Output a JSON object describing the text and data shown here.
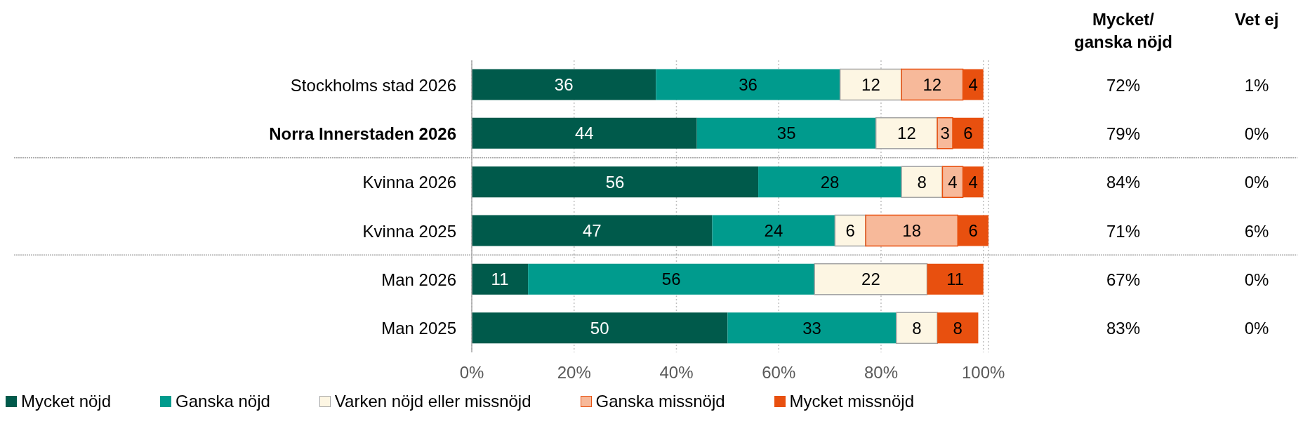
{
  "chart_data": {
    "type": "bar",
    "orientation": "horizontal",
    "stacked": true,
    "categories": [
      "Stockholms stad 2026",
      "Norra Innerstaden 2026",
      "Kvinna 2026",
      "Kvinna 2025",
      "Man 2026",
      "Man 2025"
    ],
    "series": [
      {
        "name": "Mycket nöjd",
        "color": "#005a4b",
        "values": [
          36,
          44,
          56,
          47,
          11,
          50
        ]
      },
      {
        "name": "Ganska nöjd",
        "color": "#009b8d",
        "values": [
          36,
          35,
          28,
          24,
          56,
          33
        ]
      },
      {
        "name": "Varken nöjd eller missnöjd",
        "color": "#fdf6e3",
        "values": [
          12,
          12,
          8,
          6,
          22,
          8
        ]
      },
      {
        "name": "Ganska missnöjd",
        "color": "#f7b99a",
        "values": [
          12,
          3,
          4,
          18,
          null,
          null
        ]
      },
      {
        "name": "Mycket missnöjd",
        "color": "#e8500f",
        "values": [
          4,
          6,
          4,
          6,
          11,
          8
        ]
      }
    ],
    "xlim": [
      0,
      101
    ],
    "xticks": [
      {
        "value": 0,
        "label": "0%"
      },
      {
        "value": 20,
        "label": "20%"
      },
      {
        "value": 40,
        "label": "40%"
      },
      {
        "value": 60,
        "label": "60%"
      },
      {
        "value": 80,
        "label": "80%"
      },
      {
        "value": 100,
        "label": "100%"
      }
    ],
    "grid": "x",
    "legend": "bottom",
    "data_labels": true,
    "annotations": [
      "Mycket/ ganska nöjd",
      "Vet ej",
      "72%",
      "1%",
      "79%",
      "0%",
      "84%",
      "0%",
      "71%",
      "6%",
      "67%",
      "0%",
      "83%",
      "0%"
    ]
  }
}
